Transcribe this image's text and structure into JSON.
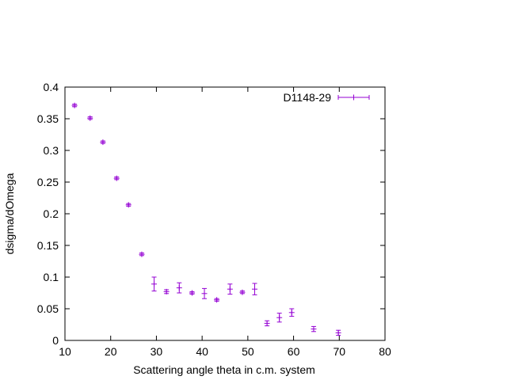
{
  "chart_data": {
    "type": "scatter",
    "title": "",
    "xlabel": "Scattering angle theta in c.m. system",
    "ylabel": "dsigma/dOmega",
    "xlim": [
      10,
      80
    ],
    "ylim": [
      0,
      0.4
    ],
    "xticks": [
      "10",
      "20",
      "30",
      "40",
      "50",
      "60",
      "70",
      "80"
    ],
    "yticks": [
      "0",
      "0.05",
      "0.1",
      "0.15",
      "0.2",
      "0.25",
      "0.3",
      "0.35",
      "0.4"
    ],
    "grid": false,
    "legend_position": "top-right",
    "series": [
      {
        "name": "D1148-29",
        "color": "#9400d3",
        "marker": "plus",
        "x": [
          12.1,
          15.5,
          18.3,
          21.3,
          23.9,
          26.8,
          29.5,
          32.2,
          35.0,
          37.8,
          40.5,
          43.2,
          46.1,
          48.8,
          51.5,
          54.2,
          56.9,
          59.6,
          64.4,
          69.8
        ],
        "y": [
          0.371,
          0.351,
          0.313,
          0.256,
          0.214,
          0.136,
          0.089,
          0.077,
          0.083,
          0.075,
          0.074,
          0.064,
          0.081,
          0.076,
          0.081,
          0.027,
          0.036,
          0.044,
          0.018,
          0.012
        ],
        "yerr": [
          0.002,
          0.002,
          0.002,
          0.002,
          0.002,
          0.002,
          0.011,
          0.003,
          0.008,
          0.002,
          0.008,
          0.002,
          0.008,
          0.002,
          0.009,
          0.004,
          0.007,
          0.006,
          0.004,
          0.004
        ]
      }
    ]
  }
}
